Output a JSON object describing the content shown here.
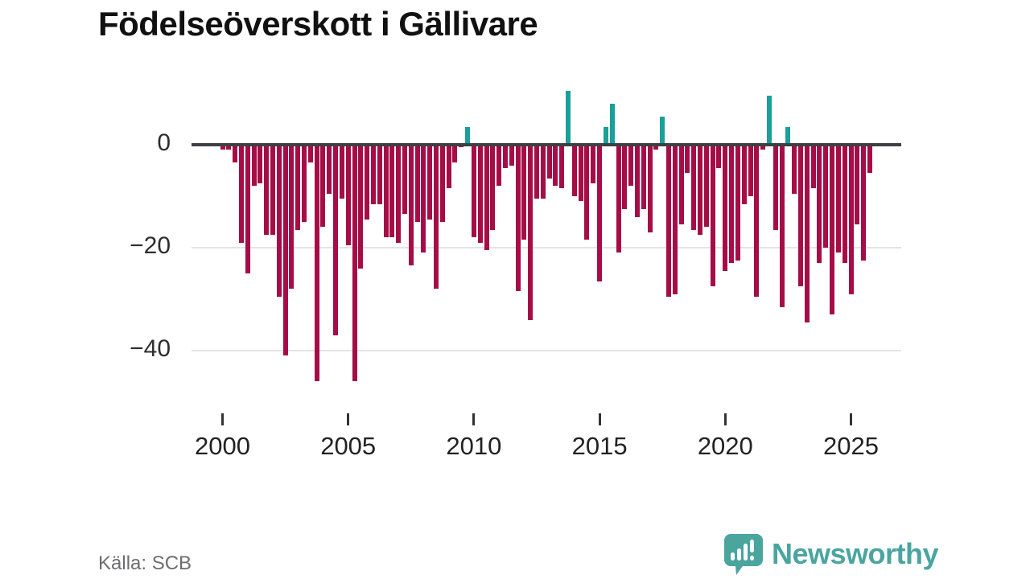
{
  "title": "Födelseöverskott i Gällivare",
  "source": "Källa: SCB",
  "brand": {
    "name": "Newsworthy",
    "color": "#4aa59f",
    "icon": "bar-chart-speech-bubble-icon"
  },
  "colors": {
    "negative_bar": "#a60c46",
    "positive_bar": "#18a099",
    "zero_line": "#3d4043",
    "gridline": "#e4e4e4",
    "axis_text": "#2d2d2d",
    "source_text": "#6d6d72",
    "title_text": "#111111"
  },
  "chart_data": {
    "type": "bar",
    "title": "Födelseöverskott i Gällivare",
    "frequency": "quarterly",
    "start_period": "2000-Q1",
    "end_period": "2025-Q4",
    "xlabel": "",
    "ylabel": "",
    "yticks": [
      0,
      -20,
      -40
    ],
    "xticks": [
      2000,
      2005,
      2010,
      2015,
      2020,
      2025
    ],
    "ylim": [
      -47,
      11
    ],
    "grid": true,
    "legend": false,
    "values": [
      -1,
      -1,
      -3.5,
      -19,
      -25,
      -8,
      -7.5,
      -17.5,
      -17.5,
      -29.5,
      -41,
      -28,
      -16.5,
      -15,
      -3.5,
      -46,
      -16,
      -9.5,
      -37,
      -10.5,
      -19.5,
      -46,
      -24,
      -14.5,
      -11.5,
      -11.5,
      -18,
      -18,
      -19,
      -13.5,
      -23.5,
      -15,
      -21,
      -14.5,
      -28,
      -15,
      -8.5,
      -3.5,
      -0.5,
      3.5,
      -18,
      -19,
      -20.5,
      -16.5,
      -8,
      -4.5,
      -4,
      -28.5,
      -18.5,
      -34,
      -10.5,
      -10.5,
      -6.5,
      -8,
      -8.5,
      10.5,
      -10,
      -11,
      -18.5,
      -7.5,
      -26.5,
      3.5,
      8,
      -21,
      -12.5,
      -8,
      -14,
      -12.5,
      -17,
      -1,
      5.5,
      -29.5,
      -29,
      -15.5,
      -5.5,
      -16.5,
      -17.5,
      -16,
      -27.5,
      -4.5,
      -24.5,
      -23,
      -22.5,
      -11.5,
      -10,
      -29.5,
      -1,
      9.5,
      -16.5,
      -31.5,
      3.5,
      -9.5,
      -27.5,
      -34.5,
      -8.5,
      -23,
      -20,
      -33,
      -21,
      -23,
      -29,
      -15.5,
      -22.5,
      -5.5
    ]
  }
}
